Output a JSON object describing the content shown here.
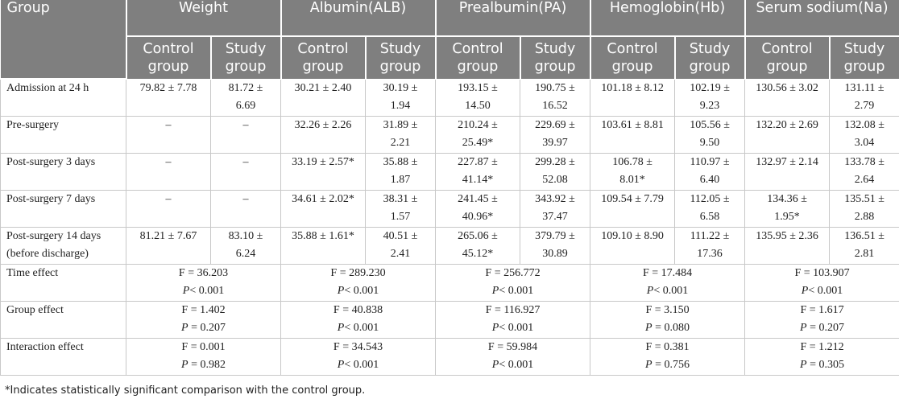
{
  "header": {
    "group_label": "Group",
    "groups": [
      "Weight",
      "Albumin(ALB)",
      "Prealbumin(PA)",
      "Hemoglobin(Hb)",
      "Serum sodium(Na)"
    ],
    "sub_a": [
      "Control",
      "group"
    ],
    "sub_b": [
      "Study",
      "group"
    ]
  },
  "rows": [
    {
      "label": [
        "Admission at 24 h"
      ],
      "cells": [
        [
          "79.82 ± 7.78"
        ],
        [
          "81.72 ±",
          "6.69"
        ],
        [
          "30.21 ± 2.40"
        ],
        [
          "30.19 ±",
          "1.94"
        ],
        [
          "193.15 ±",
          "14.50"
        ],
        [
          "190.75 ±",
          "16.52"
        ],
        [
          "101.18 ± 8.12"
        ],
        [
          "102.19 ±",
          "9.23"
        ],
        [
          "130.56 ± 3.02"
        ],
        [
          "131.11 ±",
          "2.79"
        ]
      ]
    },
    {
      "label": [
        "Pre-surgery"
      ],
      "cells": [
        [
          "–"
        ],
        [
          "–"
        ],
        [
          "32.26 ± 2.26"
        ],
        [
          "31.89 ±",
          "2.21"
        ],
        [
          "210.24 ±",
          "25.49*"
        ],
        [
          "229.69 ±",
          "39.97"
        ],
        [
          "103.61 ± 8.81"
        ],
        [
          "105.56 ±",
          "9.50"
        ],
        [
          "132.20 ± 2.69"
        ],
        [
          "132.08 ±",
          "3.04"
        ]
      ]
    },
    {
      "label": [
        "Post-surgery 3 days"
      ],
      "cells": [
        [
          "–"
        ],
        [
          "–"
        ],
        [
          "33.19 ± 2.57*"
        ],
        [
          "35.88 ±",
          "1.87"
        ],
        [
          "227.87 ±",
          "41.14*"
        ],
        [
          "299.28 ±",
          "52.08"
        ],
        [
          "106.78 ±",
          "8.01*"
        ],
        [
          "110.97 ±",
          "6.40"
        ],
        [
          "132.97 ± 2.14"
        ],
        [
          "133.78 ±",
          "2.64"
        ]
      ]
    },
    {
      "label": [
        "Post-surgery 7 days"
      ],
      "cells": [
        [
          "–"
        ],
        [
          "–"
        ],
        [
          "34.61 ± 2.02*"
        ],
        [
          "38.31 ±",
          "1.57"
        ],
        [
          "241.45 ±",
          "40.96*"
        ],
        [
          "343.92 ±",
          "37.47"
        ],
        [
          "109.54 ± 7.79"
        ],
        [
          "112.05 ±",
          "6.58"
        ],
        [
          "134.36 ±",
          "1.95*"
        ],
        [
          "135.51 ±",
          "2.88"
        ]
      ]
    },
    {
      "label": [
        "Post-surgery 14 days",
        "(before discharge)"
      ],
      "cells": [
        [
          "81.21 ± 7.67"
        ],
        [
          "83.10 ±",
          "6.24"
        ],
        [
          "35.88 ± 1.61*"
        ],
        [
          "40.51 ±",
          "2.41"
        ],
        [
          "265.06 ±",
          "45.12*"
        ],
        [
          "379.79 ±",
          "30.89"
        ],
        [
          "109.10 ± 8.90"
        ],
        [
          "111.22 ±",
          "17.36"
        ],
        [
          "135.95 ± 2.36"
        ],
        [
          "136.51 ±",
          "2.81"
        ]
      ]
    }
  ],
  "effects": [
    {
      "label": "Time effect",
      "cells": [
        [
          "F = 36.203",
          "< 0.001"
        ],
        [
          "F = 289.230",
          "< 0.001"
        ],
        [
          "F = 256.772",
          "< 0.001"
        ],
        [
          "F = 17.484",
          "< 0.001"
        ],
        [
          "F = 103.907",
          "< 0.001"
        ]
      ]
    },
    {
      "label": "Group effect",
      "cells": [
        [
          "F = 1.402",
          " = 0.207"
        ],
        [
          "F = 40.838",
          "< 0.001"
        ],
        [
          "F = 116.927",
          "< 0.001"
        ],
        [
          "F = 3.150",
          " = 0.080"
        ],
        [
          "F = 1.617",
          " = 0.207"
        ]
      ]
    },
    {
      "label": "Interaction effect",
      "cells": [
        [
          "F = 0.001",
          " = 0.982"
        ],
        [
          "F = 34.543",
          "< 0.001"
        ],
        [
          "F = 59.984",
          "< 0.001"
        ],
        [
          "F = 0.381",
          " = 0.756"
        ],
        [
          "F = 1.212",
          " = 0.305"
        ]
      ]
    }
  ],
  "p_symbol": "P",
  "footnote": "*Indicates statistically significant comparison with the control group."
}
